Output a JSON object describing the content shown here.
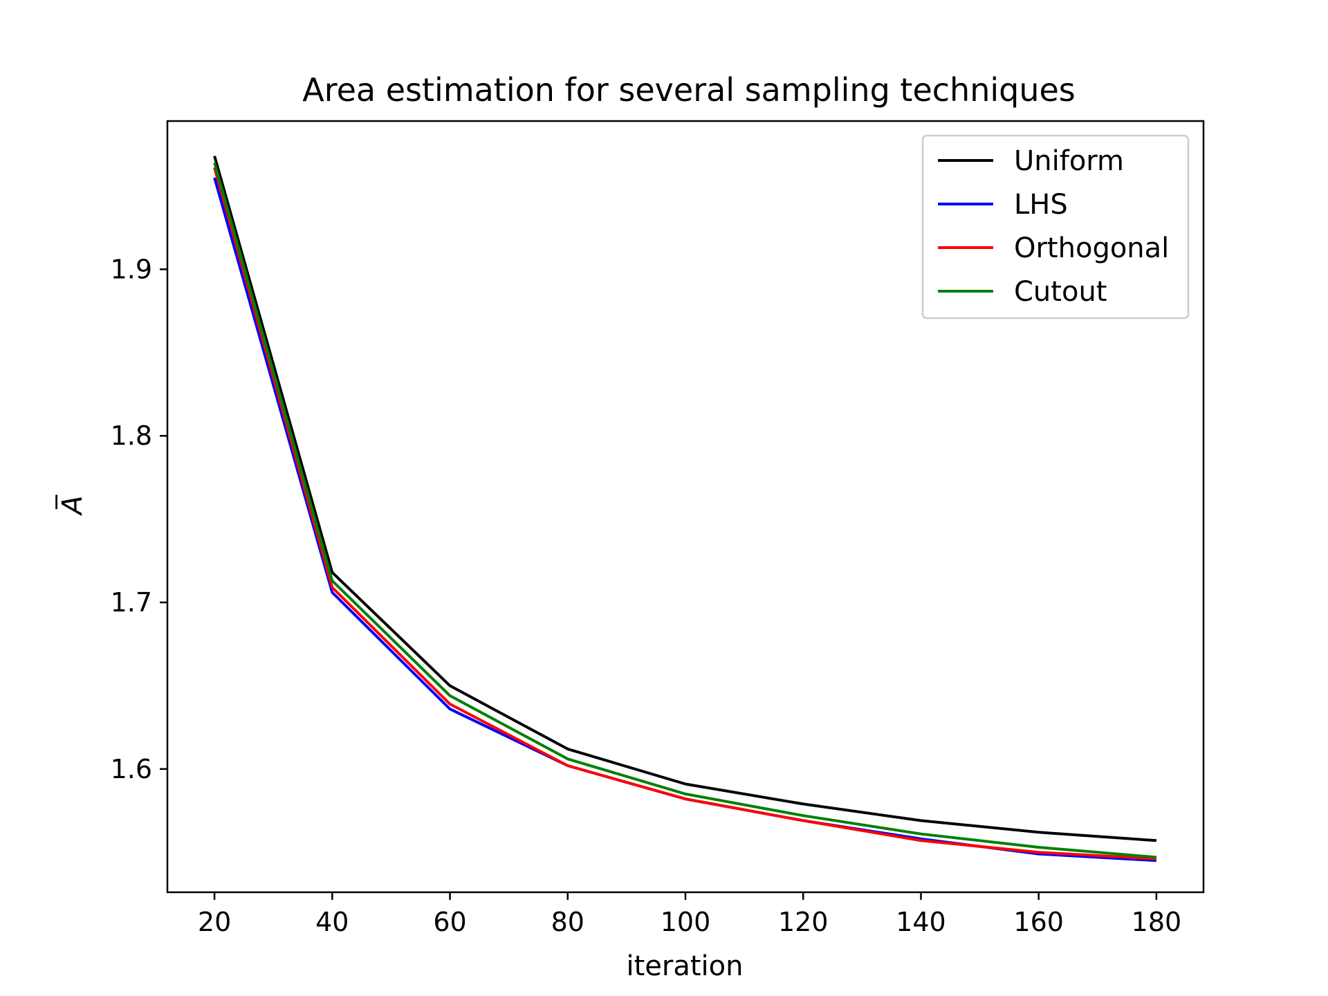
{
  "chart_data": {
    "type": "line",
    "title": "Area estimation for several sampling techniques",
    "xlabel": "iteration",
    "ylabel": "A̅",
    "x": [
      20,
      40,
      60,
      80,
      100,
      120,
      140,
      160,
      180
    ],
    "xticks": [
      "20",
      "40",
      "60",
      "80",
      "100",
      "120",
      "140",
      "160",
      "180"
    ],
    "yticks": [
      "1.6",
      "1.7",
      "1.8",
      "1.9"
    ],
    "ytick_values": [
      1.6,
      1.7,
      1.8,
      1.9
    ],
    "xlim": [
      12,
      188
    ],
    "ylim": [
      1.526,
      1.989
    ],
    "grid": false,
    "legend_position": "top-right",
    "series": [
      {
        "name": "Uniform",
        "color": "#000000",
        "values": [
          1.968,
          1.718,
          1.65,
          1.612,
          1.591,
          1.579,
          1.569,
          1.562,
          1.557
        ]
      },
      {
        "name": "LHS",
        "color": "#0000ff",
        "values": [
          1.955,
          1.706,
          1.636,
          1.602,
          1.582,
          1.569,
          1.558,
          1.549,
          1.545
        ]
      },
      {
        "name": "Orthogonal",
        "color": "#ff0000",
        "values": [
          1.961,
          1.709,
          1.639,
          1.602,
          1.582,
          1.569,
          1.557,
          1.55,
          1.546
        ]
      },
      {
        "name": "Cutout",
        "color": "#008000",
        "values": [
          1.964,
          1.713,
          1.644,
          1.606,
          1.585,
          1.572,
          1.561,
          1.553,
          1.547
        ]
      }
    ]
  }
}
